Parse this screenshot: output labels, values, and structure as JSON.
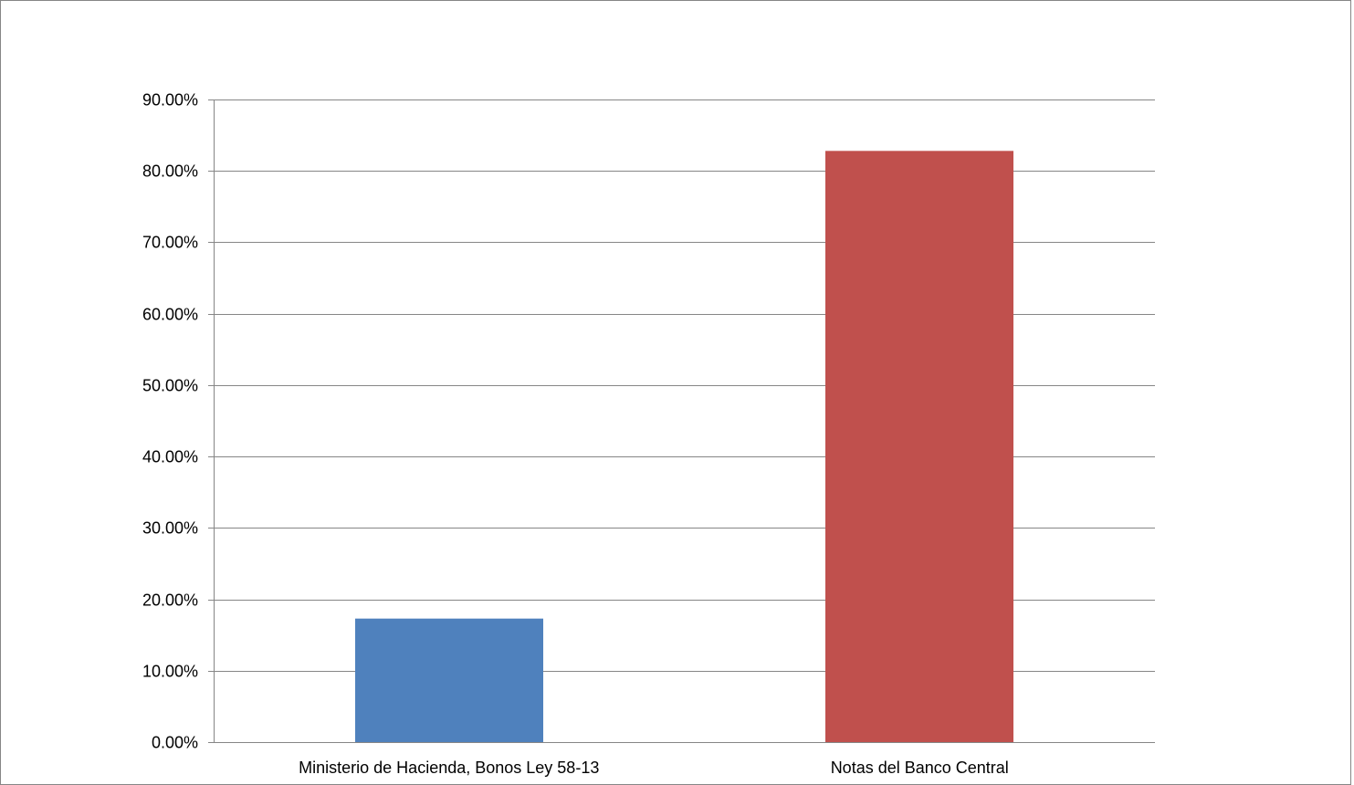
{
  "chart_data": {
    "type": "bar",
    "title": "",
    "xlabel": "",
    "ylabel": "",
    "categories": [
      "Ministerio de Hacienda, Bonos Ley 58-13",
      "Notas del Banco Central"
    ],
    "values": [
      17.3,
      82.8
    ],
    "value_unit": "%",
    "ylim": [
      0,
      90
    ],
    "yticks": [
      0,
      10,
      20,
      30,
      40,
      50,
      60,
      70,
      80,
      90
    ],
    "ytick_labels": [
      "0.00%",
      "10.00%",
      "20.00%",
      "30.00%",
      "40.00%",
      "50.00%",
      "60.00%",
      "70.00%",
      "80.00%",
      "90.00%"
    ],
    "bar_colors": [
      "#4F81BD",
      "#C0504D"
    ],
    "grid": true,
    "legend": "none"
  }
}
